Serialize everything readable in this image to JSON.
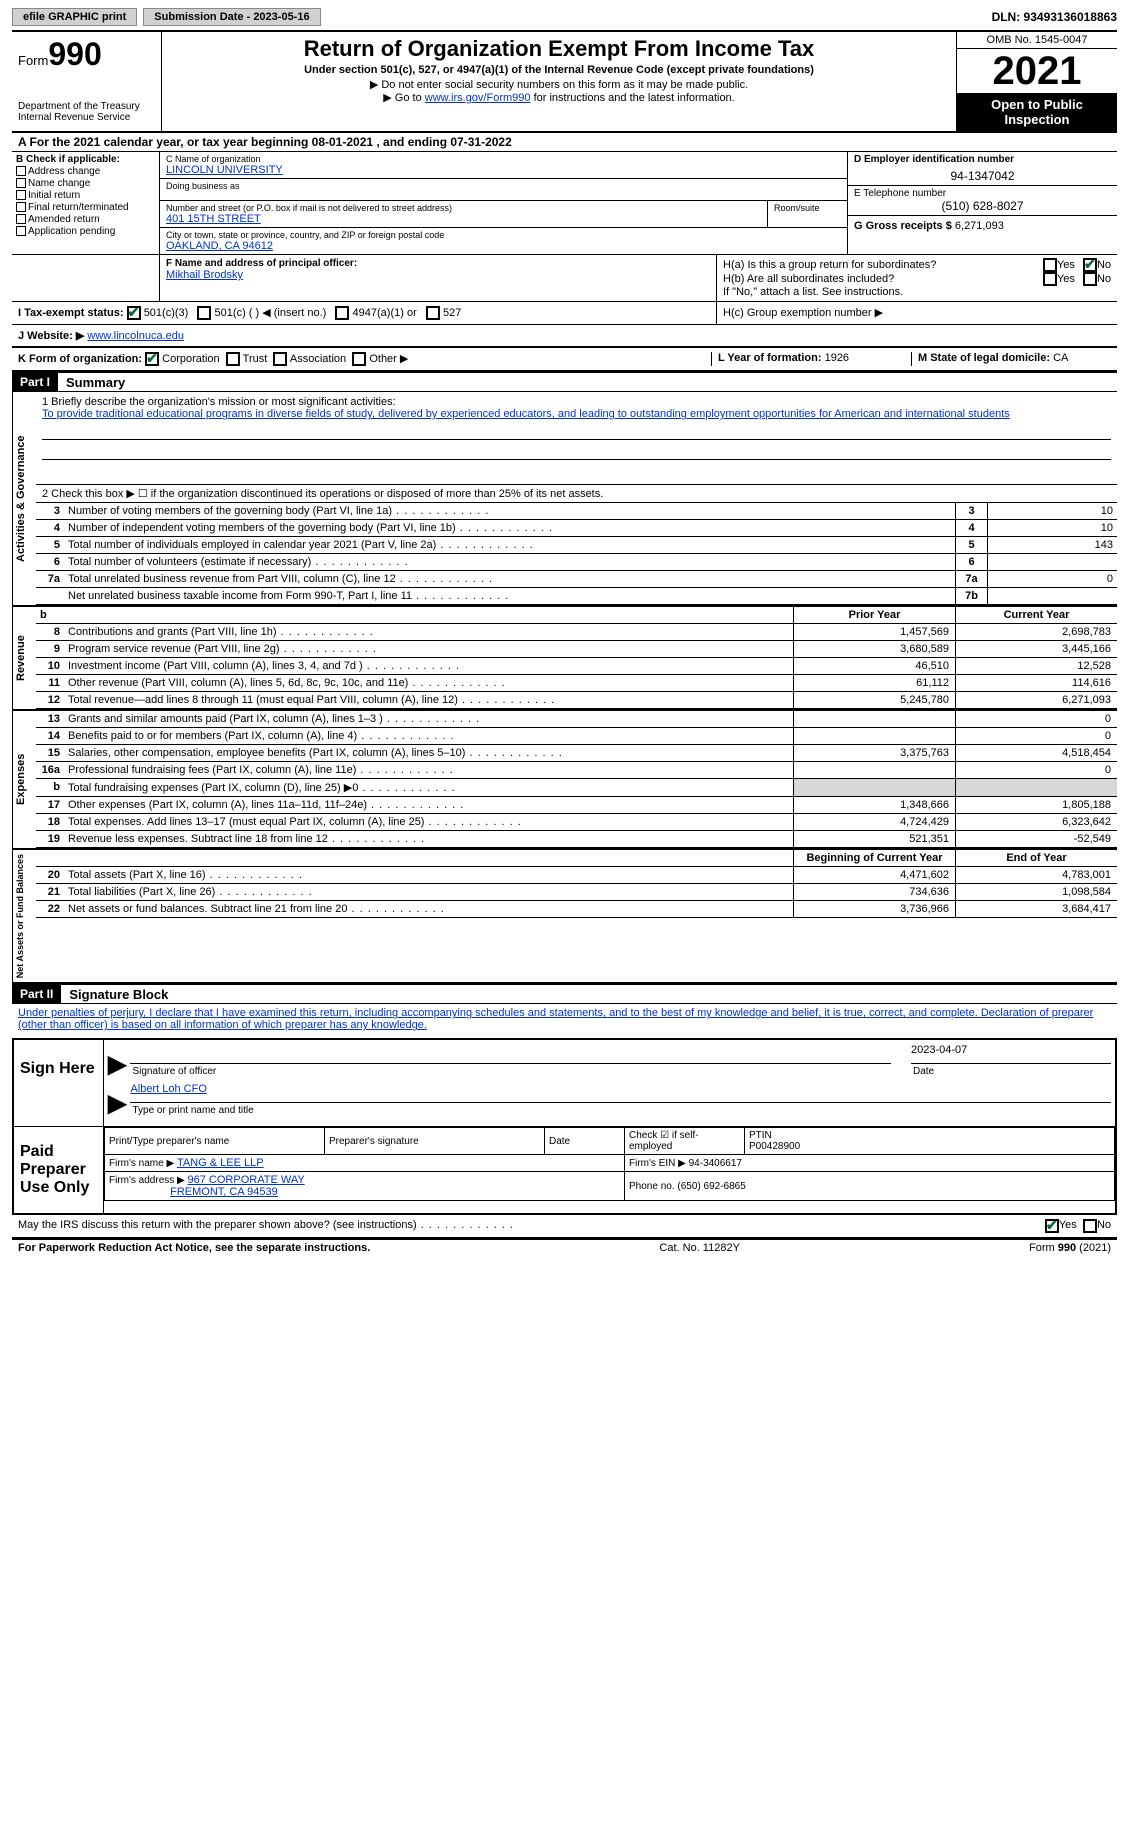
{
  "topbar": {
    "efile": "efile GRAPHIC print",
    "submission_label": "Submission Date - 2023-05-16",
    "dln_label": "DLN: 93493136018863"
  },
  "header": {
    "form_word": "Form",
    "form_number": "990",
    "dept": "Department of the Treasury Internal Revenue Service",
    "title": "Return of Organization Exempt From Income Tax",
    "subtitle": "Under section 501(c), 527, or 4947(a)(1) of the Internal Revenue Code (except private foundations)",
    "note1": "▶ Do not enter social security numbers on this form as it may be made public.",
    "note2_pre": "▶ Go to ",
    "note2_link": "www.irs.gov/Form990",
    "note2_post": " for instructions and the latest information.",
    "omb": "OMB No. 1545-0047",
    "year": "2021",
    "open_public": "Open to Public Inspection"
  },
  "line_a": "A For the 2021 calendar year, or tax year beginning 08-01-2021   , and ending 07-31-2022",
  "section_b": {
    "label": "B Check if applicable:",
    "items": [
      "Address change",
      "Name change",
      "Initial return",
      "Final return/terminated",
      "Amended return",
      "Application pending"
    ]
  },
  "section_c": {
    "name_label": "C Name of organization",
    "name": "LINCOLN UNIVERSITY",
    "dba_label": "Doing business as",
    "street_label": "Number and street (or P.O. box if mail is not delivered to street address)",
    "street": "401 15TH STREET",
    "room_label": "Room/suite",
    "city_label": "City or town, state or province, country, and ZIP or foreign postal code",
    "city": "OAKLAND, CA  94612"
  },
  "section_d": {
    "label": "D Employer identification number",
    "value": "94-1347042"
  },
  "section_e": {
    "label": "E Telephone number",
    "value": "(510) 628-8027"
  },
  "section_g": {
    "label": "G Gross receipts $",
    "value": "6,271,093"
  },
  "section_f": {
    "label": "F Name and address of principal officer:",
    "value": "Mikhail Brodsky"
  },
  "section_h": {
    "a_label": "H(a)  Is this a group return for subordinates?",
    "b_label": "H(b)  Are all subordinates included?",
    "b_note": "If \"No,\" attach a list. See instructions.",
    "c_label": "H(c)  Group exemption number ▶",
    "yes": "Yes",
    "no": "No"
  },
  "section_i": {
    "label": "I   Tax-exempt status:",
    "opt1": "501(c)(3)",
    "opt2": "501(c) (   ) ◀ (insert no.)",
    "opt3": "4947(a)(1) or",
    "opt4": "527"
  },
  "section_j": {
    "label": "J   Website: ▶",
    "value": "www.lincolnuca.edu"
  },
  "section_k": {
    "label": "K Form of organization:",
    "opts": [
      "Corporation",
      "Trust",
      "Association",
      "Other ▶"
    ]
  },
  "section_l": {
    "label": "L Year of formation:",
    "value": "1926"
  },
  "section_m": {
    "label": "M State of legal domicile:",
    "value": "CA"
  },
  "part1": {
    "header": "Part I",
    "title": "Summary",
    "line1_label": "1   Briefly describe the organization's mission or most significant activities:",
    "mission": "To provide traditional educational programs in diverse fields of study, delivered by experienced educators, and leading to outstanding employment opportunities for American and international students",
    "line2": "2   Check this box ▶ ☐  if the organization discontinued its operations or disposed of more than 25% of its net assets.",
    "governance_label": "Activities & Governance",
    "revenue_label": "Revenue",
    "expenses_label": "Expenses",
    "netassets_label": "Net Assets or Fund Balances",
    "rows_simple": [
      {
        "n": "3",
        "desc": "Number of voting members of the governing body (Part VI, line 1a)",
        "box": "3",
        "val": "10"
      },
      {
        "n": "4",
        "desc": "Number of independent voting members of the governing body (Part VI, line 1b)",
        "box": "4",
        "val": "10"
      },
      {
        "n": "5",
        "desc": "Total number of individuals employed in calendar year 2021 (Part V, line 2a)",
        "box": "5",
        "val": "143"
      },
      {
        "n": "6",
        "desc": "Total number of volunteers (estimate if necessary)",
        "box": "6",
        "val": ""
      },
      {
        "n": "7a",
        "desc": "Total unrelated business revenue from Part VIII, column (C), line 12",
        "box": "7a",
        "val": "0"
      },
      {
        "n": "",
        "desc": "Net unrelated business taxable income from Form 990-T, Part I, line 11",
        "box": "7b",
        "val": ""
      }
    ],
    "col_headers": {
      "b": "b",
      "prior": "Prior Year",
      "current": "Current Year"
    },
    "revenue_rows": [
      {
        "n": "8",
        "desc": "Contributions and grants (Part VIII, line 1h)",
        "v1": "1,457,569",
        "v2": "2,698,783"
      },
      {
        "n": "9",
        "desc": "Program service revenue (Part VIII, line 2g)",
        "v1": "3,680,589",
        "v2": "3,445,166"
      },
      {
        "n": "10",
        "desc": "Investment income (Part VIII, column (A), lines 3, 4, and 7d )",
        "v1": "46,510",
        "v2": "12,528"
      },
      {
        "n": "11",
        "desc": "Other revenue (Part VIII, column (A), lines 5, 6d, 8c, 9c, 10c, and 11e)",
        "v1": "61,112",
        "v2": "114,616"
      },
      {
        "n": "12",
        "desc": "Total revenue—add lines 8 through 11 (must equal Part VIII, column (A), line 12)",
        "v1": "5,245,780",
        "v2": "6,271,093"
      }
    ],
    "expense_rows": [
      {
        "n": "13",
        "desc": "Grants and similar amounts paid (Part IX, column (A), lines 1–3 )",
        "v1": "",
        "v2": "0"
      },
      {
        "n": "14",
        "desc": "Benefits paid to or for members (Part IX, column (A), line 4)",
        "v1": "",
        "v2": "0"
      },
      {
        "n": "15",
        "desc": "Salaries, other compensation, employee benefits (Part IX, column (A), lines 5–10)",
        "v1": "3,375,763",
        "v2": "4,518,454"
      },
      {
        "n": "16a",
        "desc": "Professional fundraising fees (Part IX, column (A), line 11e)",
        "v1": "",
        "v2": "0"
      },
      {
        "n": "b",
        "desc": "Total fundraising expenses (Part IX, column (D), line 25) ▶0",
        "v1": "GRAY",
        "v2": "GRAY"
      },
      {
        "n": "17",
        "desc": "Other expenses (Part IX, column (A), lines 11a–11d, 11f–24e)",
        "v1": "1,348,666",
        "v2": "1,805,188"
      },
      {
        "n": "18",
        "desc": "Total expenses. Add lines 13–17 (must equal Part IX, column (A), line 25)",
        "v1": "4,724,429",
        "v2": "6,323,642"
      },
      {
        "n": "19",
        "desc": "Revenue less expenses. Subtract line 18 from line 12",
        "v1": "521,351",
        "v2": "-52,549"
      }
    ],
    "netassets_headers": {
      "begin": "Beginning of Current Year",
      "end": "End of Year"
    },
    "netassets_rows": [
      {
        "n": "20",
        "desc": "Total assets (Part X, line 16)",
        "v1": "4,471,602",
        "v2": "4,783,001"
      },
      {
        "n": "21",
        "desc": "Total liabilities (Part X, line 26)",
        "v1": "734,636",
        "v2": "1,098,584"
      },
      {
        "n": "22",
        "desc": "Net assets or fund balances. Subtract line 21 from line 20",
        "v1": "3,736,966",
        "v2": "3,684,417"
      }
    ]
  },
  "part2": {
    "header": "Part II",
    "title": "Signature Block",
    "declaration": "Under penalties of perjury, I declare that I have examined this return, including accompanying schedules and statements, and to the best of my knowledge and belief, it is true, correct, and complete. Declaration of preparer (other than officer) is based on all information of which preparer has any knowledge.",
    "sign_here": "Sign Here",
    "sig_officer": "Signature of officer",
    "sig_date": "2023-04-07",
    "date_label": "Date",
    "officer_name": "Albert Loh  CFO",
    "name_title_label": "Type or print name and title",
    "paid_label": "Paid Preparer Use Only",
    "prep_name_label": "Print/Type preparer's name",
    "prep_sig_label": "Preparer's signature",
    "check_self": "Check ☑ if self-employed",
    "ptin_label": "PTIN",
    "ptin": "P00428900",
    "firm_name_label": "Firm's name    ▶",
    "firm_name": "TANG & LEE LLP",
    "firm_ein_label": "Firm's EIN ▶",
    "firm_ein": "94-3406617",
    "firm_addr_label": "Firm's address ▶",
    "firm_addr1": "967 CORPORATE WAY",
    "firm_addr2": "FREMONT, CA  94539",
    "phone_label": "Phone no.",
    "phone": "(650) 692-6865",
    "discuss": "May the IRS discuss this return with the preparer shown above? (see instructions)"
  },
  "footer": {
    "paperwork": "For Paperwork Reduction Act Notice, see the separate instructions.",
    "cat": "Cat. No. 11282Y",
    "formref": "Form 990 (2021)"
  }
}
